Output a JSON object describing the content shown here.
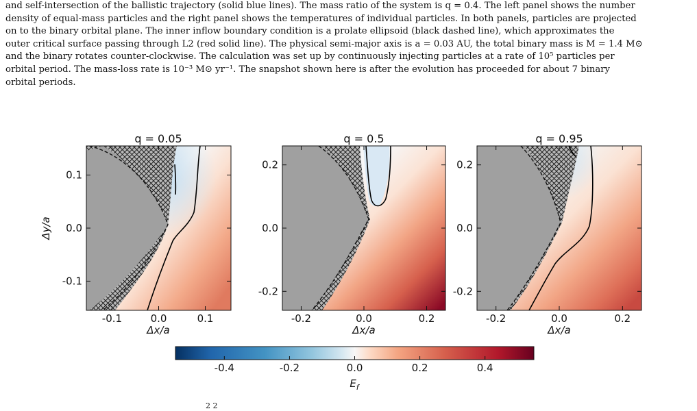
{
  "caption": {
    "lines": [
      "and self-intersection of the ballistic trajectory (solid blue lines). The mass ratio of the system is q = 0.4. The left panel shows the number",
      "density of equal-mass particles and the right panel shows the temperatures of individual particles. In both panels, particles are projected",
      "on to the binary orbital plane. The inner inflow boundary condition is a prolate ellipsoid (black dashed line), which approximates the",
      "outer critical surface passing through L2 (red solid line). The physical semi-major axis is a = 0.03 AU, the total binary mass is M = 1.4 M⊙",
      "and the binary rotates counter-clockwise. The calculation was set up by continuously injecting particles at a rate of 10⁵ particles per",
      "orbital period. The mass-loss rate is 10⁻³ M⊙ yr⁻¹. The snapshot shown here is after the evolution has proceeded for about 7 binary",
      "orbital periods."
    ]
  },
  "bottom_fragment": "2  2",
  "chart_data": [
    {
      "type": "heatmap",
      "title": "q = 0.05",
      "xlabel": "Δx/a",
      "ylabel": "Δy/a",
      "xlim": [
        -0.155,
        0.155
      ],
      "ylim": [
        -0.155,
        0.155
      ],
      "xticks": [
        {
          "v": -0.1,
          "label": "-0.1"
        },
        {
          "v": 0.0,
          "label": "0.0"
        },
        {
          "v": 0.1,
          "label": "0.1"
        }
      ],
      "yticks": [
        {
          "v": 0.1,
          "label": "0.1"
        },
        {
          "v": 0.0,
          "label": "0.0"
        },
        {
          "v": -0.1,
          "label": "-0.1"
        }
      ]
    },
    {
      "type": "heatmap",
      "title": "q = 0.5",
      "xlabel": "Δx/a",
      "ylabel": "",
      "xlim": [
        -0.26,
        0.26
      ],
      "ylim": [
        -0.26,
        0.26
      ],
      "xticks": [
        {
          "v": -0.2,
          "label": "-0.2"
        },
        {
          "v": 0.0,
          "label": "0.0"
        },
        {
          "v": 0.2,
          "label": "0.2"
        }
      ],
      "yticks": [
        {
          "v": 0.2,
          "label": "0.2"
        },
        {
          "v": 0.0,
          "label": "0.0"
        },
        {
          "v": -0.2,
          "label": "-0.2"
        }
      ]
    },
    {
      "type": "heatmap",
      "title": "q = 0.95",
      "xlabel": "Δx/a",
      "ylabel": "",
      "xlim": [
        -0.26,
        0.26
      ],
      "ylim": [
        -0.26,
        0.26
      ],
      "xticks": [
        {
          "v": -0.2,
          "label": "-0.2"
        },
        {
          "v": 0.0,
          "label": "0.0"
        },
        {
          "v": 0.2,
          "label": "0.2"
        }
      ],
      "yticks": [
        {
          "v": 0.2,
          "label": "0.2"
        },
        {
          "v": 0.0,
          "label": "0.0"
        },
        {
          "v": -0.2,
          "label": "-0.2"
        }
      ]
    }
  ],
  "colorbar": {
    "label": "E_f",
    "range": [
      -0.55,
      0.55
    ],
    "ticks": [
      {
        "v": -0.4,
        "label": "-0.4"
      },
      {
        "v": -0.2,
        "label": "-0.2"
      },
      {
        "v": 0.0,
        "label": "0.0"
      },
      {
        "v": 0.2,
        "label": "0.2"
      },
      {
        "v": 0.4,
        "label": "0.4"
      }
    ],
    "colormap": "RdBu_r"
  },
  "colors": {
    "mask_gray": "#a0a0a0",
    "hatch": "#222222",
    "contour": "#000000"
  }
}
